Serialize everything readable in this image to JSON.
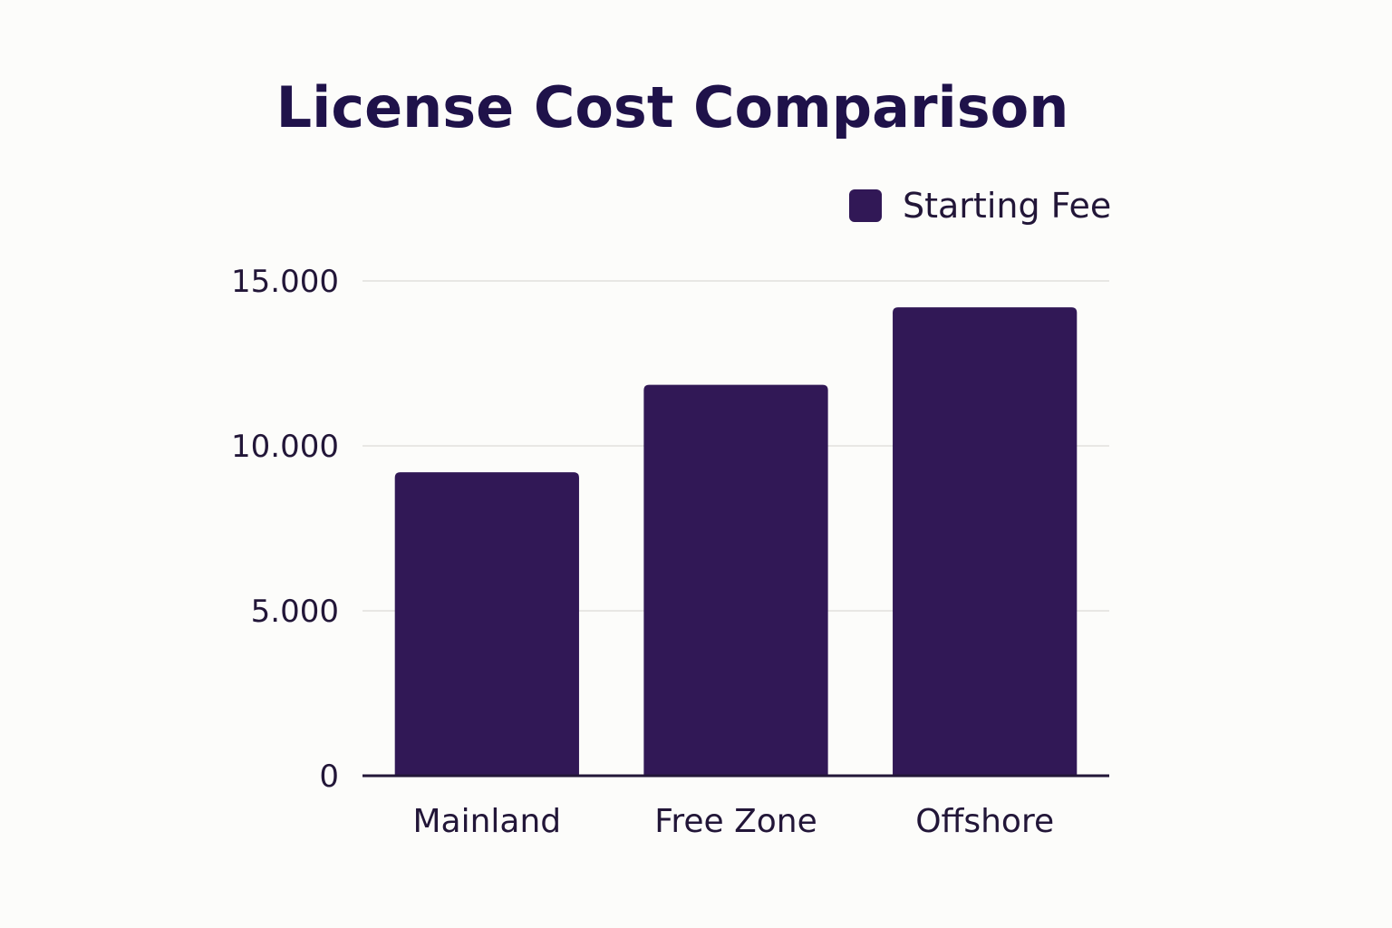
{
  "chart_data": {
    "type": "bar",
    "title": "License Cost Comparison",
    "xlabel": "",
    "ylabel": "",
    "categories": [
      "Mainland",
      "Free Zone",
      "Offshore"
    ],
    "series": [
      {
        "name": "Starting Fee",
        "values": [
          9200,
          11850,
          14200
        ],
        "color": "#311856"
      }
    ],
    "ylim": [
      0,
      15000
    ],
    "yticks": [
      {
        "value": 0,
        "label": "0"
      },
      {
        "value": 5000,
        "label": "5.000"
      },
      {
        "value": 10000,
        "label": "10.000"
      },
      {
        "value": 15000,
        "label": "15.000"
      }
    ],
    "grid": true,
    "legend_position": "top-right"
  }
}
